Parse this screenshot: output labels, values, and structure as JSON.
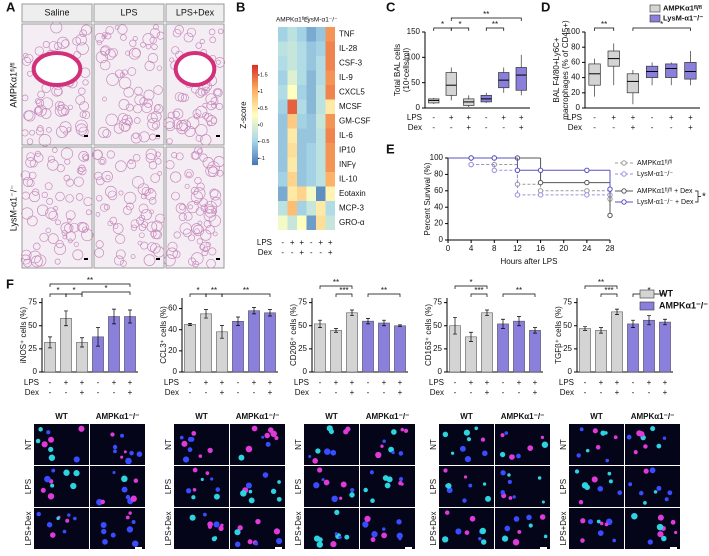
{
  "panel_labels": [
    "A",
    "B",
    "C",
    "D",
    "E",
    "F"
  ],
  "panel_a": {
    "columns": [
      "Saline",
      "LPS",
      "LPS+Dex"
    ],
    "rows": [
      "AMPKα1ᶠˡ/ᶠˡ",
      "LysM-α1⁻/⁻"
    ]
  },
  "micrographs": {
    "columns": [
      "WT",
      "AMPKα1⁻/⁻"
    ],
    "rows": [
      "NT",
      "LPS",
      "LPS+Dex"
    ]
  },
  "chart_data": [
    {
      "type": "heatmap",
      "column_groups": [
        "AMPKα1ᶠˡ/ᶠˡ",
        "LysM-α1⁻/⁻"
      ],
      "rows": [
        "TNF",
        "IL-28",
        "CSF-3",
        "IL-9",
        "CXCL5",
        "MCSF",
        "GM-CSF",
        "IL-6",
        "IP10",
        "INFγ",
        "IL-10",
        "Eotaxin",
        "MCP-3",
        "GRO-α"
      ],
      "values": [
        [
          -0.5,
          -0.3,
          -0.5,
          -0.8,
          -0.6,
          1.2
        ],
        [
          -0.3,
          -0.2,
          -0.4,
          -0.6,
          -0.5,
          1.3
        ],
        [
          -0.4,
          -0.2,
          -0.4,
          -0.6,
          -0.4,
          1.3
        ],
        [
          -0.5,
          0,
          -0.4,
          -0.7,
          -0.4,
          1.2
        ],
        [
          -0.4,
          0.3,
          -0.5,
          -0.7,
          -0.3,
          1.3
        ],
        [
          -0.5,
          1.5,
          -0.4,
          -0.7,
          -0.3,
          0.5
        ],
        [
          -0.6,
          0.8,
          -0.5,
          -0.6,
          -0.2,
          1.2
        ],
        [
          -0.6,
          0.5,
          -0.6,
          -0.6,
          -0.3,
          1.3
        ],
        [
          -0.6,
          0.6,
          -0.6,
          -0.5,
          -0.3,
          1.2
        ],
        [
          -0.6,
          0.5,
          -0.6,
          -0.5,
          -0.3,
          1.2
        ],
        [
          -0.5,
          0.7,
          -0.6,
          -0.5,
          -0.3,
          1
        ],
        [
          -0.8,
          0.5,
          0.7,
          0.2,
          -1,
          0.4
        ],
        [
          -0.3,
          0.9,
          -0.5,
          -0.2,
          0.5,
          -0.4
        ],
        [
          0.2,
          -0.2,
          0.3,
          -0.9,
          0.6,
          -0.2
        ]
      ],
      "colorbar_label": "Z-score",
      "clim": [
        -1.2,
        1.8
      ],
      "cticks": [
        1.5,
        1,
        0.5,
        0,
        -0.5,
        -1
      ],
      "treatment": {
        "rows": [
          "LPS",
          "Dex"
        ],
        "signs": [
          [
            "-",
            "+",
            "+",
            "-",
            "+",
            "+"
          ],
          [
            "-",
            "-",
            "+",
            "-",
            "-",
            "+"
          ]
        ]
      }
    },
    {
      "type": "box",
      "ylabel": [
        "Total BAL cells",
        "(10⁴cells/ml)"
      ],
      "ylim": [
        0,
        150
      ],
      "yticks": [
        0,
        50,
        100,
        150
      ],
      "series": [
        {
          "color": "#d4d4d4",
          "min": [
            8,
            15,
            2
          ],
          "q1": [
            10,
            25,
            5
          ],
          "median": [
            15,
            45,
            12
          ],
          "q3": [
            18,
            70,
            18
          ],
          "max": [
            20,
            80,
            25
          ]
        },
        {
          "color": "#8a80dc",
          "min": [
            10,
            30,
            25
          ],
          "q1": [
            12,
            40,
            35
          ],
          "median": [
            18,
            55,
            65
          ],
          "q3": [
            25,
            70,
            80
          ],
          "max": [
            30,
            80,
            105
          ]
        }
      ],
      "annotations": [
        "*",
        "*",
        "**",
        "**"
      ],
      "treatment": {
        "rows": [
          "LPS",
          "Dex"
        ],
        "signs": [
          [
            "-",
            "+",
            "+",
            "-",
            "+",
            "+"
          ],
          [
            "-",
            "-",
            "+",
            "-",
            "-",
            "+"
          ]
        ]
      }
    },
    {
      "type": "box",
      "ylabel": [
        "BAL F4/80+Ly6C+",
        "macrophages (% of CD45+)"
      ],
      "ylim": [
        0,
        100
      ],
      "yticks": [
        0,
        20,
        40,
        60,
        80,
        100
      ],
      "series": [
        {
          "name": "AMPKα1ᶠˡ/ᶠˡ",
          "color": "#d4d4d4",
          "min": [
            15,
            30,
            5
          ],
          "q1": [
            30,
            55,
            20
          ],
          "median": [
            45,
            65,
            35
          ],
          "q3": [
            58,
            75,
            45
          ],
          "max": [
            65,
            85,
            50
          ]
        },
        {
          "name": "LysM-α1⁻/⁻",
          "color": "#8a80dc",
          "min": [
            30,
            30,
            30
          ],
          "q1": [
            40,
            40,
            38
          ],
          "median": [
            48,
            52,
            48
          ],
          "q3": [
            55,
            58,
            60
          ],
          "max": [
            60,
            60,
            75
          ]
        }
      ],
      "annotations": [
        "**",
        "*"
      ],
      "treatment": {
        "rows": [
          "LPS",
          "Dex"
        ],
        "signs": [
          [
            "-",
            "+",
            "+",
            "-",
            "+",
            "+"
          ],
          [
            "-",
            "-",
            "+",
            "-",
            "-",
            "+"
          ]
        ]
      }
    },
    {
      "type": "line",
      "ylabel": "Percent Survival (%)",
      "xlabel": "Hours after LPS",
      "xlim": [
        0,
        28
      ],
      "xticks": [
        0,
        4,
        8,
        12,
        16,
        20,
        24,
        28
      ],
      "ylim": [
        0,
        100
      ],
      "yticks": [
        0,
        20,
        40,
        60,
        80,
        100
      ],
      "x": [
        0,
        4,
        8,
        12,
        16,
        24,
        28
      ],
      "series": [
        {
          "name": "AMPKα1ᶠˡ/ᶠˡ",
          "color": "#999999",
          "dashed": true,
          "values": [
            100,
            92,
            92,
            68,
            60,
            60,
            50
          ]
        },
        {
          "name": "LysM-α1⁻/⁻",
          "color": "#9a90e0",
          "dashed": true,
          "values": [
            100,
            92,
            85,
            55,
            55,
            55,
            55
          ]
        },
        {
          "name": "AMPKα1ᶠˡ/ᶠˡ + Dex",
          "color": "#555555",
          "dashed": false,
          "values": [
            100,
            100,
            100,
            100,
            70,
            70,
            30
          ]
        },
        {
          "name": "LysM-α1⁻/⁻ + Dex",
          "color": "#5a50c0",
          "dashed": false,
          "values": [
            100,
            100,
            100,
            85,
            85,
            85,
            62
          ]
        }
      ],
      "annotations": [
        "*"
      ]
    },
    {
      "type": "bar",
      "ylabel": "iNOS⁺ cells (%)",
      "ylim": [
        0,
        80
      ],
      "yticks": [
        0,
        25,
        50,
        75
      ],
      "series": [
        {
          "name": "WT",
          "color": "#d4d4d4",
          "values": [
            32,
            58,
            32
          ],
          "errors": [
            6,
            8,
            5
          ]
        },
        {
          "name": "AMPKα1⁻/⁻",
          "color": "#8a80dc",
          "values": [
            38,
            60,
            60
          ],
          "errors": [
            10,
            8,
            7
          ]
        }
      ],
      "annotations": [
        "*",
        "*",
        "**",
        "*"
      ],
      "treatment": {
        "rows": [
          "LPS",
          "Dex"
        ],
        "signs": [
          [
            "-",
            "+",
            "+",
            "-",
            "+",
            "+"
          ],
          [
            "-",
            "-",
            "+",
            "-",
            "-",
            "+"
          ]
        ]
      }
    },
    {
      "type": "bar",
      "ylabel": "CCL3⁺ cells (%)",
      "ylim": [
        0,
        70
      ],
      "yticks": [
        0,
        20,
        40,
        60
      ],
      "series": [
        {
          "color": "#d4d4d4",
          "values": [
            45,
            55,
            38
          ],
          "errors": [
            1,
            4,
            6
          ]
        },
        {
          "color": "#8a80dc",
          "values": [
            48,
            58,
            56
          ],
          "errors": [
            4,
            3,
            3
          ]
        }
      ],
      "annotations": [
        "*",
        "**",
        "**"
      ],
      "treatment": {
        "rows": [
          "LPS",
          "Dex"
        ],
        "signs": [
          [
            "-",
            "+",
            "+",
            "-",
            "+",
            "+"
          ],
          [
            "-",
            "-",
            "+",
            "-",
            "-",
            "+"
          ]
        ]
      }
    },
    {
      "type": "bar",
      "ylabel": "CD206⁺ cells (%)",
      "ylim": [
        0,
        80
      ],
      "yticks": [
        0,
        25,
        50,
        75
      ],
      "series": [
        {
          "color": "#d4d4d4",
          "values": [
            52,
            45,
            64
          ],
          "errors": [
            4,
            2,
            3
          ]
        },
        {
          "color": "#8a80dc",
          "values": [
            55,
            53,
            50
          ],
          "errors": [
            3,
            3,
            1
          ]
        }
      ],
      "annotations": [
        "**",
        "***",
        "**"
      ],
      "treatment": {
        "rows": [
          "LPS",
          "Dex"
        ],
        "signs": [
          [
            "-",
            "+",
            "+",
            "-",
            "+",
            "+"
          ],
          [
            "-",
            "-",
            "+",
            "-",
            "-",
            "+"
          ]
        ]
      }
    },
    {
      "type": "bar",
      "ylabel": "CD163⁺ cells (%)",
      "ylim": [
        0,
        80
      ],
      "yticks": [
        0,
        25,
        50,
        75
      ],
      "series": [
        {
          "color": "#d4d4d4",
          "values": [
            50,
            38,
            64
          ],
          "errors": [
            9,
            5,
            3
          ]
        },
        {
          "color": "#8a80dc",
          "values": [
            52,
            55,
            45
          ],
          "errors": [
            5,
            5,
            3
          ]
        }
      ],
      "annotations": [
        "*",
        "***",
        "**"
      ],
      "treatment": {
        "rows": [
          "LPS",
          "Dex"
        ],
        "signs": [
          [
            "-",
            "+",
            "+",
            "-",
            "+",
            "+"
          ],
          [
            "-",
            "-",
            "+",
            "-",
            "-",
            "+"
          ]
        ]
      }
    },
    {
      "type": "bar",
      "ylabel": "TGFβ⁺ cells (%)",
      "ylim": [
        0,
        80
      ],
      "yticks": [
        0,
        25,
        50,
        75
      ],
      "series": [
        {
          "color": "#d4d4d4",
          "values": [
            47,
            45,
            65
          ],
          "errors": [
            2,
            3,
            3
          ]
        },
        {
          "color": "#8a80dc",
          "values": [
            52,
            56,
            54
          ],
          "errors": [
            4,
            5,
            3
          ]
        }
      ],
      "annotations": [
        "**",
        "***",
        "*"
      ],
      "treatment": {
        "rows": [
          "LPS",
          "Dex"
        ],
        "signs": [
          [
            "-",
            "+",
            "+",
            "-",
            "+",
            "+"
          ],
          [
            "-",
            "-",
            "+",
            "-",
            "-",
            "+"
          ]
        ]
      }
    }
  ]
}
